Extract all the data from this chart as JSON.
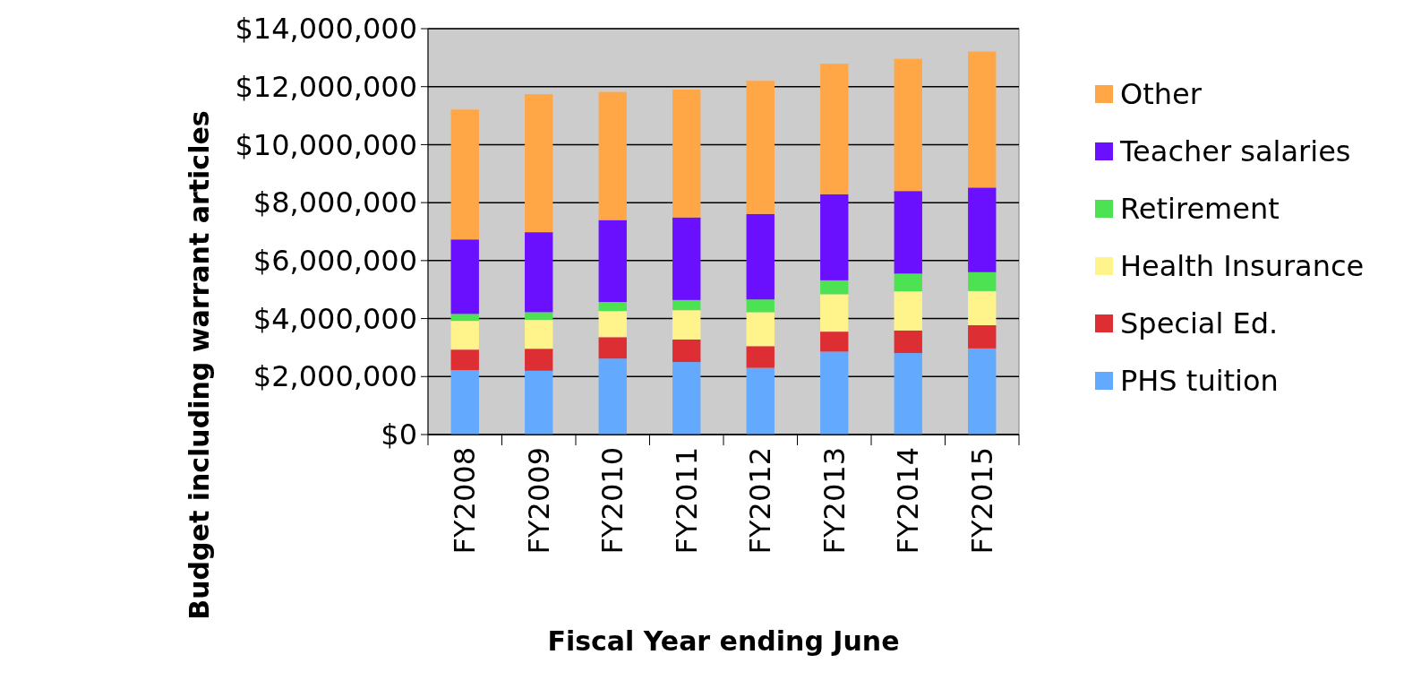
{
  "chart_data": {
    "type": "bar",
    "stacked": true,
    "xlabel": "Fiscal Year ending June",
    "ylabel": "Budget including warrant articles",
    "categories": [
      "FY2008",
      "FY2009",
      "FY2010",
      "FY2011",
      "FY2012",
      "FY2013",
      "FY2014",
      "FY2015"
    ],
    "series": [
      {
        "name": "PHS tuition",
        "color": "#63aaff",
        "values": [
          2220000,
          2200000,
          2620000,
          2500000,
          2300000,
          2860000,
          2810000,
          2970000
        ]
      },
      {
        "name": "Special Ed.",
        "color": "#dd2e33",
        "values": [
          710000,
          760000,
          740000,
          780000,
          750000,
          690000,
          780000,
          800000
        ]
      },
      {
        "name": "Health Insurance",
        "color": "#fff38b",
        "values": [
          990000,
          1000000,
          900000,
          1010000,
          1170000,
          1290000,
          1350000,
          1180000
        ]
      },
      {
        "name": "Retirement",
        "color": "#4de251",
        "values": [
          240000,
          260000,
          310000,
          350000,
          440000,
          480000,
          610000,
          650000
        ]
      },
      {
        "name": "Teacher salaries",
        "color": "#6b0fff",
        "values": [
          2570000,
          2760000,
          2830000,
          2850000,
          2950000,
          2970000,
          2850000,
          2920000
        ]
      },
      {
        "name": "Other",
        "color": "#ffa647",
        "values": [
          4480000,
          4760000,
          4420000,
          4410000,
          4590000,
          4500000,
          4560000,
          4690000
        ]
      }
    ],
    "ylim": [
      0,
      14000000
    ],
    "yticks": [
      {
        "value": 0,
        "label": "$0"
      },
      {
        "value": 2000000,
        "label": "$2,000,000"
      },
      {
        "value": 4000000,
        "label": "$4,000,000"
      },
      {
        "value": 6000000,
        "label": "$6,000,000"
      },
      {
        "value": 8000000,
        "label": "$8,000,000"
      },
      {
        "value": 10000000,
        "label": "$10,000,000"
      },
      {
        "value": 12000000,
        "label": "$12,000,000"
      },
      {
        "value": 14000000,
        "label": "$14,000,000"
      }
    ],
    "grid": "y",
    "legend": "right"
  }
}
